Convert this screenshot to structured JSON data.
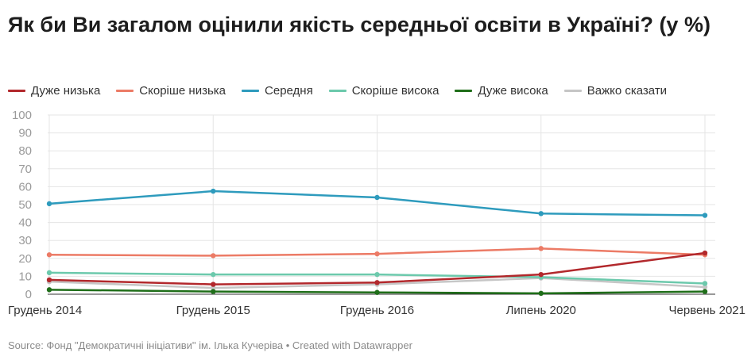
{
  "title": "Як би Ви загалом оцінили якість середньої освіти в Україні? (у %)",
  "source": "Source: Фонд \"Демократичні ініціативи\" ім. Ілька Кучеріва • Created with Datawrapper",
  "chart_data": {
    "type": "line",
    "title": "Як би Ви загалом оцінили якість середньої освіти в Україні? (у %)",
    "xlabel": "",
    "ylabel": "",
    "ylim": [
      0,
      100
    ],
    "yticks": [
      0,
      10,
      20,
      30,
      40,
      50,
      60,
      70,
      80,
      90,
      100
    ],
    "categories": [
      "Грудень 2014",
      "Грудень 2015",
      "Грудень 2016",
      "Липень 2020",
      "Червень 2021"
    ],
    "legend_position": "top-left",
    "series": [
      {
        "name": "Дуже низька",
        "color": "#b2282c",
        "values": [
          8,
          5.5,
          6.5,
          11,
          23
        ]
      },
      {
        "name": "Скоріше низька",
        "color": "#ec7b66",
        "values": [
          22,
          21.5,
          22.5,
          25.5,
          22
        ]
      },
      {
        "name": "Середня",
        "color": "#2e9bbd",
        "values": [
          50.5,
          57.5,
          54,
          45,
          44
        ]
      },
      {
        "name": "Скоріше висока",
        "color": "#6cc9ac",
        "values": [
          12,
          11,
          11,
          9.5,
          6
        ]
      },
      {
        "name": "Дуже висока",
        "color": "#1f6e19",
        "values": [
          2.5,
          1.5,
          1,
          0.5,
          1.5
        ]
      },
      {
        "name": "Важко сказати",
        "color": "#c6c6c6",
        "values": [
          7,
          3.5,
          5.5,
          9,
          4
        ]
      }
    ]
  }
}
